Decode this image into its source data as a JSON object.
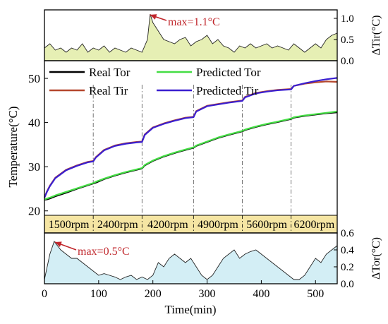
{
  "chart_data": [
    {
      "id": "tir_error",
      "type": "area",
      "ylabel": "ΔTir(°C)",
      "ylim": [
        0.0,
        1.2
      ],
      "yticks": [
        "0.0",
        "0.5",
        "1.0"
      ],
      "fill_color": "#e6efb4",
      "line_color": "#222222",
      "annotation": {
        "text": "max=1.1°C",
        "x": 192,
        "y": 1.1,
        "color": "#c0262b"
      },
      "x": [
        0,
        10,
        20,
        30,
        40,
        50,
        60,
        70,
        80,
        90,
        100,
        110,
        120,
        130,
        140,
        150,
        160,
        170,
        180,
        190,
        195,
        200,
        210,
        220,
        230,
        240,
        250,
        260,
        270,
        280,
        290,
        300,
        310,
        320,
        330,
        340,
        350,
        360,
        370,
        380,
        390,
        400,
        410,
        420,
        430,
        440,
        450,
        460,
        470,
        480,
        490,
        500,
        510,
        520,
        530,
        540
      ],
      "values": [
        0.3,
        0.4,
        0.25,
        0.3,
        0.2,
        0.3,
        0.25,
        0.4,
        0.2,
        0.3,
        0.25,
        0.35,
        0.2,
        0.3,
        0.25,
        0.2,
        0.3,
        0.25,
        0.2,
        0.5,
        1.1,
        0.9,
        0.7,
        0.5,
        0.45,
        0.4,
        0.5,
        0.55,
        0.35,
        0.45,
        0.5,
        0.6,
        0.4,
        0.5,
        0.35,
        0.3,
        0.2,
        0.35,
        0.3,
        0.4,
        0.3,
        0.35,
        0.4,
        0.3,
        0.35,
        0.3,
        0.25,
        0.4,
        0.3,
        0.2,
        0.3,
        0.4,
        0.3,
        0.5,
        0.6,
        0.65
      ]
    },
    {
      "id": "temperature",
      "type": "line",
      "xlim": [
        0,
        540
      ],
      "ylim": [
        19,
        54
      ],
      "ylabel": "Temperature(°C)",
      "yticks": [
        "20",
        "30",
        "40",
        "50"
      ],
      "stage_boundaries": [
        90,
        180,
        275,
        365,
        455
      ],
      "x": [
        0,
        5,
        10,
        20,
        40,
        60,
        80,
        90,
        95,
        110,
        130,
        150,
        170,
        180,
        185,
        200,
        220,
        240,
        260,
        275,
        280,
        300,
        320,
        340,
        365,
        370,
        390,
        410,
        430,
        455,
        460,
        480,
        500,
        520,
        540
      ],
      "series": [
        {
          "name": "Real Tor",
          "color": "#000000",
          "values": [
            22.5,
            22.6,
            22.8,
            23.3,
            24.1,
            25.0,
            25.8,
            26.2,
            26.4,
            27.2,
            28.0,
            28.7,
            29.3,
            29.6,
            30.3,
            31.3,
            32.3,
            33.1,
            33.8,
            34.3,
            34.7,
            35.6,
            36.5,
            37.2,
            38.0,
            38.3,
            39.0,
            39.6,
            40.1,
            40.8,
            41.1,
            41.5,
            41.8,
            42.1,
            42.3
          ]
        },
        {
          "name": "Predicted Tor",
          "color": "#44dd44",
          "values": [
            22.6,
            22.8,
            23.0,
            23.5,
            24.3,
            25.1,
            25.9,
            26.3,
            26.6,
            27.3,
            28.1,
            28.8,
            29.4,
            29.7,
            30.4,
            31.4,
            32.4,
            33.2,
            33.9,
            34.4,
            34.8,
            35.7,
            36.6,
            37.3,
            38.1,
            38.4,
            39.1,
            39.7,
            40.2,
            40.9,
            41.2,
            41.6,
            41.9,
            42.2,
            42.5
          ]
        },
        {
          "name": "Real Tir",
          "color": "#b5472d",
          "values": [
            23.0,
            24.5,
            25.7,
            27.5,
            29.3,
            30.3,
            31.1,
            31.3,
            32.2,
            33.8,
            34.8,
            35.3,
            35.6,
            35.7,
            37.3,
            38.9,
            39.8,
            40.5,
            41.1,
            41.3,
            42.6,
            43.8,
            44.2,
            44.6,
            45.0,
            45.8,
            46.7,
            47.1,
            47.4,
            47.6,
            48.3,
            48.8,
            49.1,
            49.3,
            49.2
          ]
        },
        {
          "name": "Predicted Tir",
          "color": "#3a1fd0",
          "values": [
            23.0,
            24.4,
            25.6,
            27.4,
            29.2,
            30.2,
            31.0,
            31.2,
            32.1,
            33.7,
            34.7,
            35.2,
            35.5,
            35.6,
            37.2,
            38.8,
            39.7,
            40.4,
            41.0,
            41.2,
            42.5,
            43.7,
            44.1,
            44.5,
            44.9,
            45.7,
            46.6,
            47.0,
            47.3,
            47.5,
            48.3,
            48.9,
            49.4,
            49.8,
            50.1
          ]
        }
      ],
      "band_color": "#f5e5a3",
      "stages": [
        "1500rpm",
        "2400rpm",
        "4200rpm",
        "4900rpm",
        "5600rpm",
        "6200rpm"
      ]
    },
    {
      "id": "tor_error",
      "type": "area",
      "xlabel": "Time(min)",
      "xticks": [
        "0",
        "100",
        "200",
        "300",
        "400",
        "500"
      ],
      "ylabel": "ΔTor(°C)",
      "ylim": [
        0.0,
        0.6
      ],
      "yticks": [
        "0.0",
        "0.2",
        "0.4",
        "0.6"
      ],
      "fill_color": "#d3eef5",
      "line_color": "#222222",
      "annotation": {
        "text": "max=0.5°C",
        "x": 18,
        "y": 0.5,
        "color": "#c0262b"
      },
      "x": [
        0,
        10,
        18,
        30,
        40,
        50,
        60,
        70,
        80,
        90,
        100,
        110,
        120,
        130,
        140,
        150,
        160,
        170,
        180,
        190,
        200,
        210,
        220,
        230,
        240,
        250,
        260,
        270,
        280,
        290,
        300,
        310,
        320,
        330,
        340,
        350,
        360,
        370,
        380,
        390,
        400,
        410,
        420,
        430,
        440,
        450,
        460,
        470,
        480,
        490,
        500,
        510,
        520,
        530,
        540
      ],
      "values": [
        0.05,
        0.35,
        0.5,
        0.4,
        0.35,
        0.3,
        0.3,
        0.25,
        0.2,
        0.15,
        0.1,
        0.12,
        0.1,
        0.08,
        0.05,
        0.08,
        0.1,
        0.05,
        0.08,
        0.05,
        0.1,
        0.25,
        0.2,
        0.3,
        0.35,
        0.3,
        0.25,
        0.3,
        0.2,
        0.1,
        0.05,
        0.1,
        0.2,
        0.3,
        0.35,
        0.4,
        0.3,
        0.35,
        0.38,
        0.4,
        0.35,
        0.3,
        0.25,
        0.2,
        0.15,
        0.1,
        0.05,
        0.05,
        0.1,
        0.2,
        0.3,
        0.25,
        0.35,
        0.4,
        0.45
      ]
    }
  ]
}
